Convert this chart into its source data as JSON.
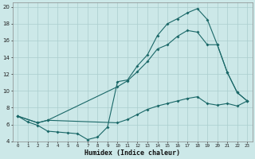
{
  "xlabel": "Humidex (Indice chaleur)",
  "bg_color": "#cce8e8",
  "grid_color": "#aacece",
  "line_color": "#1a6868",
  "xlim": [
    -0.5,
    23.5
  ],
  "ylim": [
    4,
    20.5
  ],
  "xticks": [
    0,
    1,
    2,
    3,
    4,
    5,
    6,
    7,
    8,
    9,
    10,
    11,
    12,
    13,
    14,
    15,
    16,
    17,
    18,
    19,
    20,
    21,
    22,
    23
  ],
  "yticks": [
    4,
    6,
    8,
    10,
    12,
    14,
    16,
    18,
    20
  ],
  "line1_x": [
    0,
    1,
    2,
    3,
    4,
    5,
    6,
    7,
    8,
    9,
    10,
    11,
    12,
    13,
    14,
    15,
    16,
    17,
    18,
    19,
    20,
    21,
    22,
    23
  ],
  "line1_y": [
    7.0,
    6.3,
    5.9,
    5.2,
    5.1,
    5.0,
    4.9,
    4.2,
    4.5,
    5.7,
    11.1,
    11.3,
    13.0,
    14.3,
    16.6,
    18.0,
    18.6,
    19.3,
    19.8,
    18.5,
    15.5,
    12.2,
    9.8,
    8.8
  ],
  "line2_x": [
    0,
    2,
    3,
    10,
    11,
    12,
    13,
    14,
    15,
    16,
    17,
    18,
    19,
    20,
    21,
    22,
    23
  ],
  "line2_y": [
    7.0,
    6.2,
    6.5,
    10.5,
    11.2,
    12.3,
    13.5,
    15.0,
    15.5,
    16.5,
    17.2,
    17.0,
    15.5,
    15.5,
    12.2,
    9.8,
    8.8
  ],
  "line3_x": [
    0,
    2,
    3,
    10,
    11,
    12,
    13,
    14,
    15,
    16,
    17,
    18,
    19,
    20,
    21,
    22,
    23
  ],
  "line3_y": [
    7.0,
    6.2,
    6.5,
    6.2,
    6.6,
    7.2,
    7.8,
    8.2,
    8.5,
    8.8,
    9.1,
    9.3,
    8.5,
    8.3,
    8.5,
    8.2,
    8.8
  ]
}
